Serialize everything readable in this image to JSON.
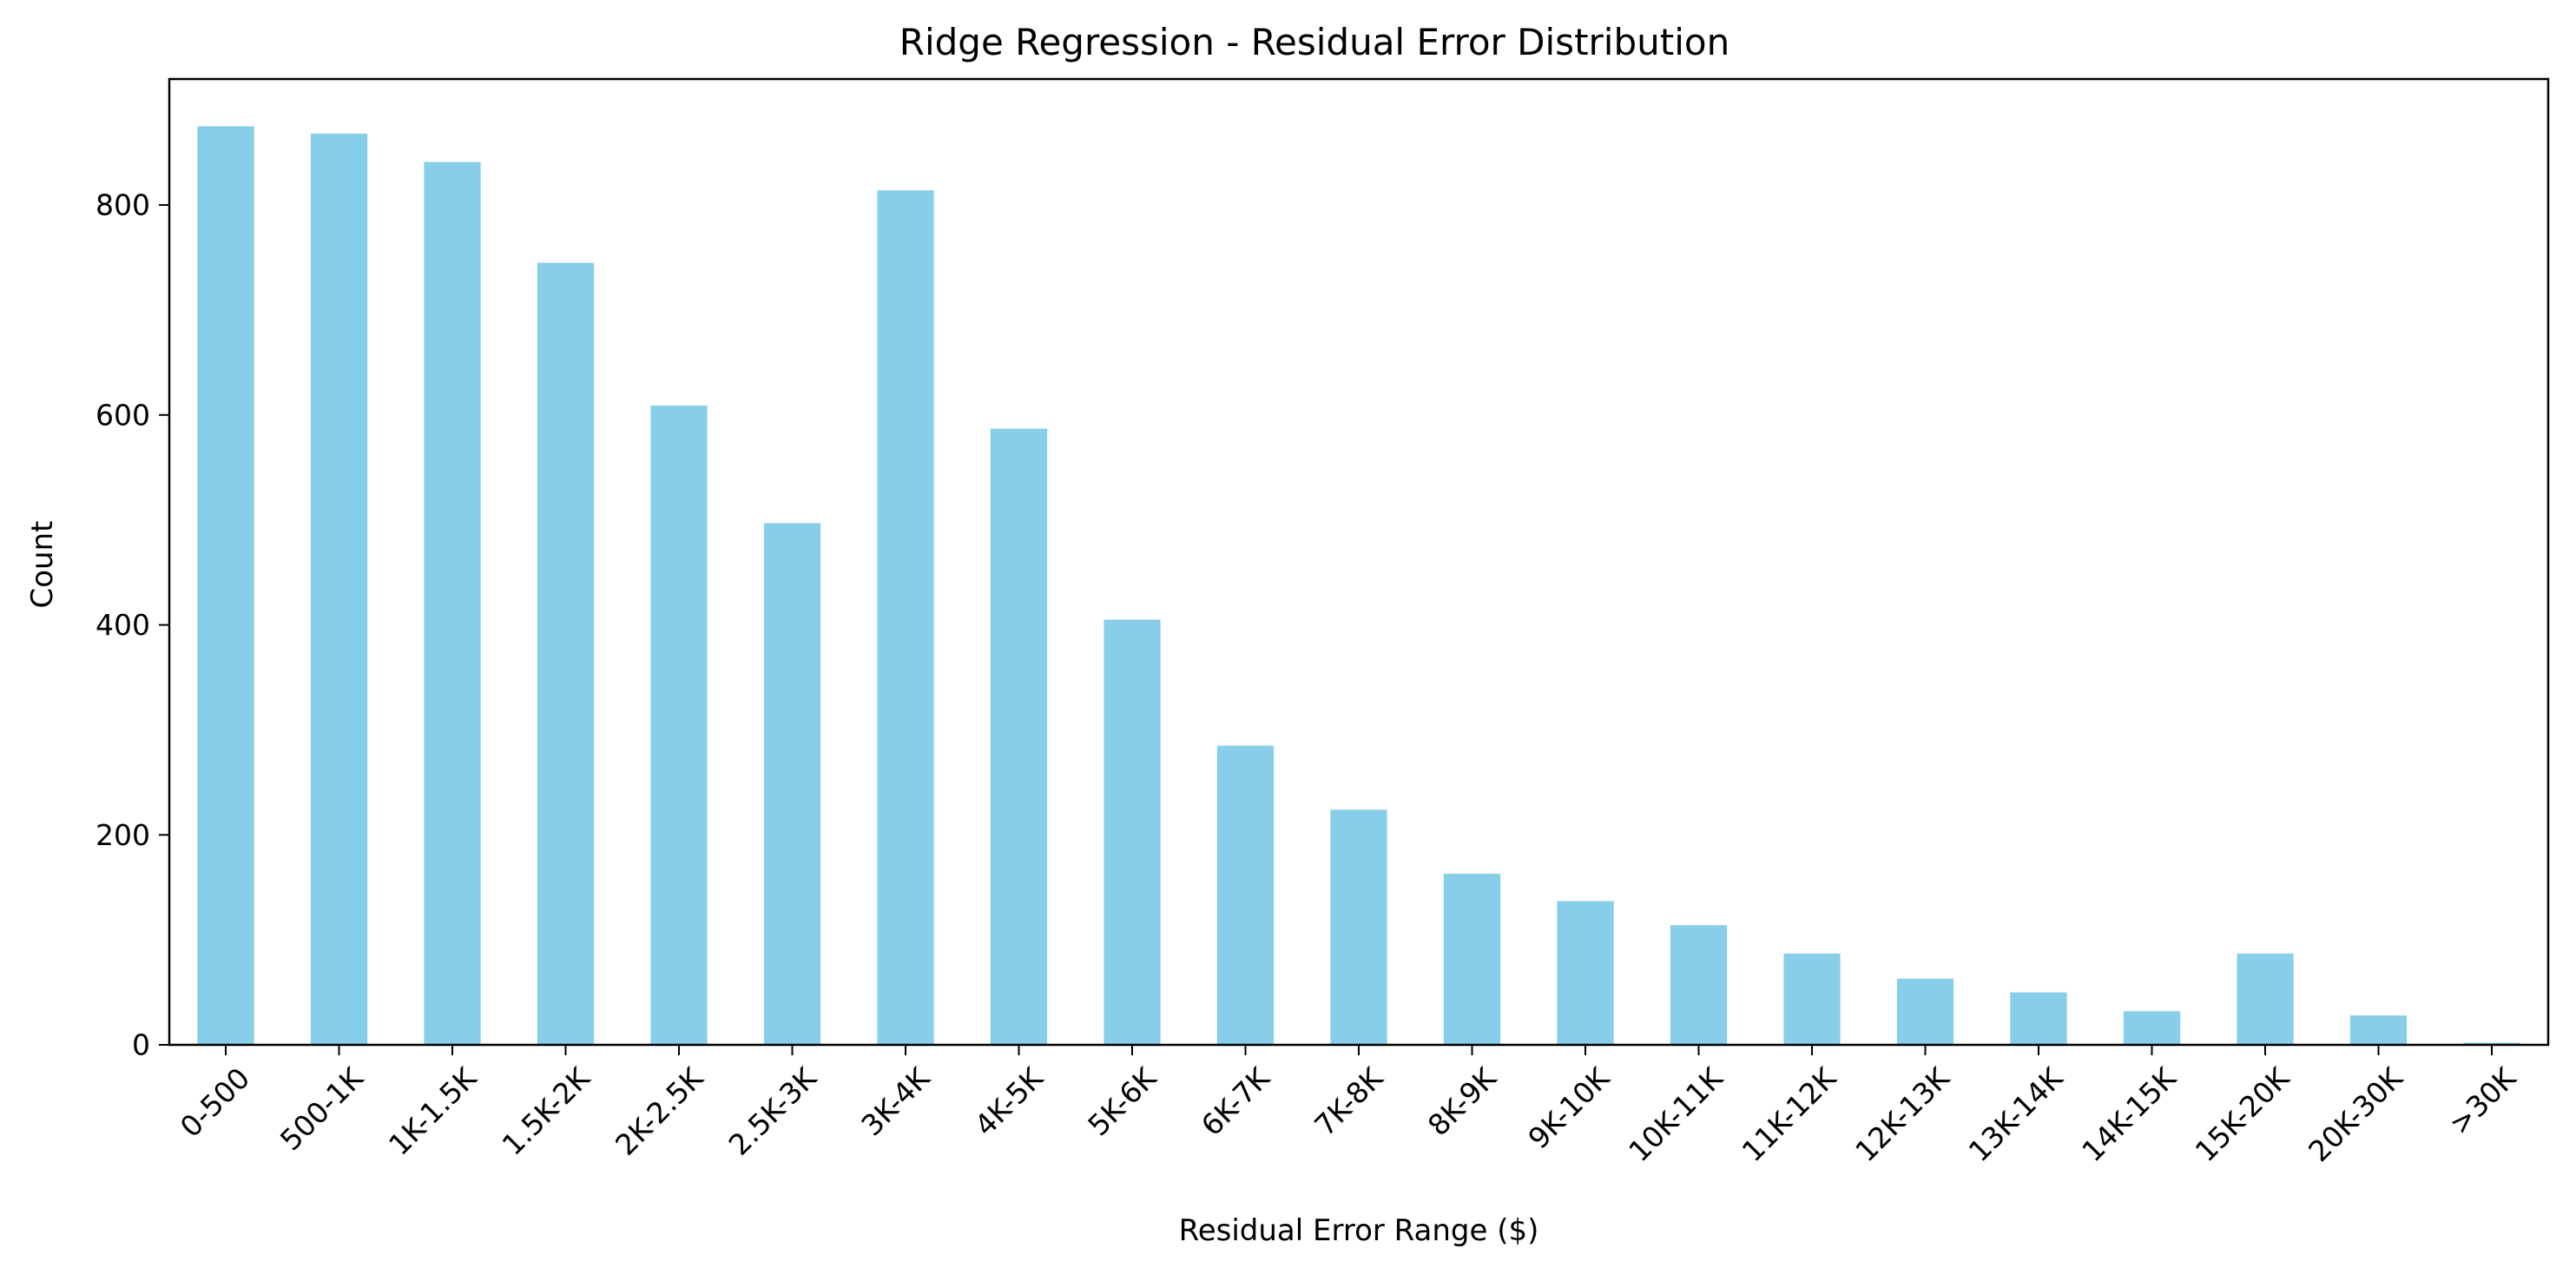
{
  "chart_data": {
    "type": "bar",
    "title": "Ridge Regression - Residual Error Distribution",
    "xlabel": "Residual Error Range ($)",
    "ylabel": "Count",
    "categories": [
      "0-500",
      "500-1K",
      "1K-1.5K",
      "1.5K-2K",
      "2K-2.5K",
      "2.5K-3K",
      "3K-4K",
      "4K-5K",
      "5K-6K",
      "6K-7K",
      "7K-8K",
      "8K-9K",
      "9K-10K",
      "10K-11K",
      "11K-12K",
      "12K-13K",
      "13K-14K",
      "14K-15K",
      "15K-20K",
      "20K-30K",
      ">30K"
    ],
    "values": [
      875,
      868,
      841,
      745,
      609,
      497,
      814,
      587,
      405,
      285,
      224,
      163,
      137,
      114,
      87,
      63,
      50,
      32,
      87,
      28,
      2
    ],
    "ylim": [
      0,
      920
    ],
    "yticks": [
      0,
      200,
      400,
      600,
      800
    ],
    "bar_color": "#87ceeb",
    "grid": false,
    "legend": "none"
  }
}
